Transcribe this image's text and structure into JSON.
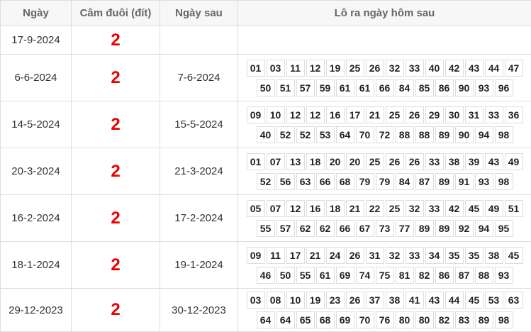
{
  "table": {
    "headers": [
      "Ngày",
      "Câm đuôi (đít)",
      "Ngày sau",
      "Lô ra ngày hôm sau"
    ],
    "rows": [
      {
        "date": "17-9-2024",
        "tail": 2
      },
      {
        "date": "6-6-2024",
        "tail": 2,
        "next_date": "7-6-2024",
        "numbers": [
          "01",
          "03",
          "11",
          "12",
          "19",
          "25",
          "26",
          "32",
          "33",
          "40",
          "42",
          "43",
          "44",
          "47",
          "50",
          "51",
          "57",
          "59",
          "61",
          "61",
          "66",
          "84",
          "85",
          "86",
          "90",
          "93",
          "96"
        ]
      },
      {
        "date": "14-5-2024",
        "tail": 2,
        "next_date": "15-5-2024",
        "numbers": [
          "09",
          "10",
          "12",
          "12",
          "16",
          "17",
          "21",
          "25",
          "26",
          "29",
          "30",
          "31",
          "33",
          "36",
          "40",
          "52",
          "52",
          "53",
          "64",
          "70",
          "72",
          "88",
          "88",
          "89",
          "90",
          "94",
          "98"
        ]
      },
      {
        "date": "20-3-2024",
        "tail": 2,
        "next_date": "21-3-2024",
        "numbers": [
          "01",
          "07",
          "13",
          "18",
          "20",
          "20",
          "25",
          "26",
          "26",
          "33",
          "38",
          "39",
          "43",
          "49",
          "52",
          "56",
          "63",
          "66",
          "68",
          "79",
          "79",
          "84",
          "87",
          "89",
          "91",
          "93",
          "98"
        ]
      },
      {
        "date": "16-2-2024",
        "tail": 2,
        "next_date": "17-2-2024",
        "numbers": [
          "05",
          "07",
          "12",
          "16",
          "18",
          "21",
          "22",
          "25",
          "32",
          "33",
          "42",
          "45",
          "49",
          "51",
          "55",
          "57",
          "62",
          "62",
          "66",
          "67",
          "73",
          "77",
          "89",
          "89",
          "92",
          "94",
          "95"
        ]
      },
      {
        "date": "18-1-2024",
        "tail": 2,
        "next_date": "19-1-2024",
        "numbers": [
          "09",
          "11",
          "17",
          "21",
          "24",
          "26",
          "31",
          "32",
          "33",
          "34",
          "35",
          "35",
          "38",
          "45",
          "46",
          "50",
          "55",
          "61",
          "69",
          "74",
          "75",
          "81",
          "82",
          "86",
          "87",
          "88",
          "93"
        ]
      },
      {
        "date": "29-12-2023",
        "tail": 2,
        "next_date": "30-12-2023",
        "numbers": [
          "03",
          "08",
          "10",
          "19",
          "23",
          "26",
          "37",
          "38",
          "41",
          "43",
          "44",
          "45",
          "53",
          "63",
          "64",
          "64",
          "65",
          "68",
          "69",
          "70",
          "76",
          "80",
          "80",
          "82",
          "83",
          "89",
          "98"
        ]
      }
    ]
  }
}
